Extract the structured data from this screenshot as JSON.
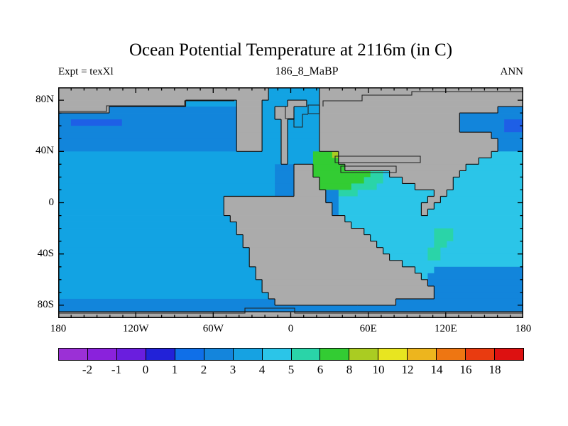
{
  "chart_data": {
    "type": "heatmap",
    "title": "Ocean Potential Temperature at 2116m (in C)",
    "annotations": {
      "left": "Expt = texXl",
      "center": "186_8_MaBP",
      "right": "ANN"
    },
    "x_axis": {
      "tick_labels": [
        "180",
        "120W",
        "60W",
        "0",
        "60E",
        "120E",
        "180"
      ],
      "range_deg": [
        -180,
        180
      ],
      "minor_tick_deg": 10
    },
    "y_axis": {
      "tick_labels": [
        "80N",
        "40N",
        "0",
        "40S",
        "80S"
      ],
      "range_deg": [
        90,
        -90
      ],
      "minor_tick_deg": 10
    },
    "colorbar": {
      "tick_labels": [
        "-2",
        "-1",
        "0",
        "1",
        "2",
        "3",
        "4",
        "5",
        "6",
        "8",
        "10",
        "12",
        "14",
        "16",
        "18"
      ],
      "colors": [
        "#9B30D6",
        "#8A22DC",
        "#6A1EDE",
        "#2222D8",
        "#0F6FE8",
        "#1485DC",
        "#16A2E2",
        "#2BC5E8",
        "#2AD4A8",
        "#33CC33",
        "#AACC22",
        "#E8E520",
        "#EDB51E",
        "#EE7612",
        "#E93B10",
        "#DD1111"
      ],
      "units": "C"
    },
    "legend_codes": {
      "L": "land",
      "a": "1-2 C",
      "b": "2-3 C",
      "c": "3-4 C",
      "d": "4-5 C",
      "e": "5-6 C",
      "g": "6-8 C",
      "y": "8-10 C"
    },
    "cell_colors": {
      "L": "#ABABAB",
      "a": "#1E5FE6",
      "b": "#1285DB",
      "c": "#12A3E3",
      "d": "#2BC5E8",
      "e": "#2AD4A8",
      "g": "#33CC33",
      "y": "#AACC22"
    },
    "grid_cols": 73,
    "grid_rows": 36,
    "grid_rle": [
      "L33,c8,L32",
      "L33,c8,L32",
      "L20,c8,L4,c4,L3,c2,L32",
      "L8,b20,L4,c2,L3,c4,L28,b4",
      "b28,L4,c2,L3,c4,L22,b10",
      "b2,a8,b18,L4,c3,L1,c5,L22,b7,a3",
      "b28,L4,c3,L1,c5,L22,b7,a3",
      "b28,L4,c3,L1,c5,L27,b5",
      "b28,L4,c3,L1,c5,L28,b4",
      "b28,L4,c3,L1,c5,L28,b4",
      "c35,L1,c4,g3,y1,L24,d5",
      "c35,L1,c4,g4,L22,d7",
      "c34,b3,L3,g5,L19,d9",
      "c34,b3,L3,g9,e2,d1,L11,d10",
      "c34,b3,L4,g7,e3,d3,L8,d11",
      "c34,b3,L4,g5,e4,d6,L6,d11",
      "c34,b3,L5,b2,e3,d12,L2,d12",
      "c26,L16,b2,d14,L2,d13",
      "c26,L17,b1,d13,L2,d14",
      "c26,L17,b1,d13,L1,d15",
      "c27,L18,d28",
      "c28,L18,d27",
      "c28,L20,d11,e3,d11",
      "c29,L20,d10,e3,d11",
      "c29,L21,d9,e2,d12",
      "c30,L21,d7,e2,d13",
      "c30,L22,d6,e2,d13",
      "c30,L24,d19",
      "c31,L25,d3,b14",
      "c31,L26,d1,b15",
      "c32,L26,b15",
      "c32,L27,b14",
      "c33,L26,b14",
      "b34,L19,b20",
      "b73",
      "L73"
    ]
  }
}
